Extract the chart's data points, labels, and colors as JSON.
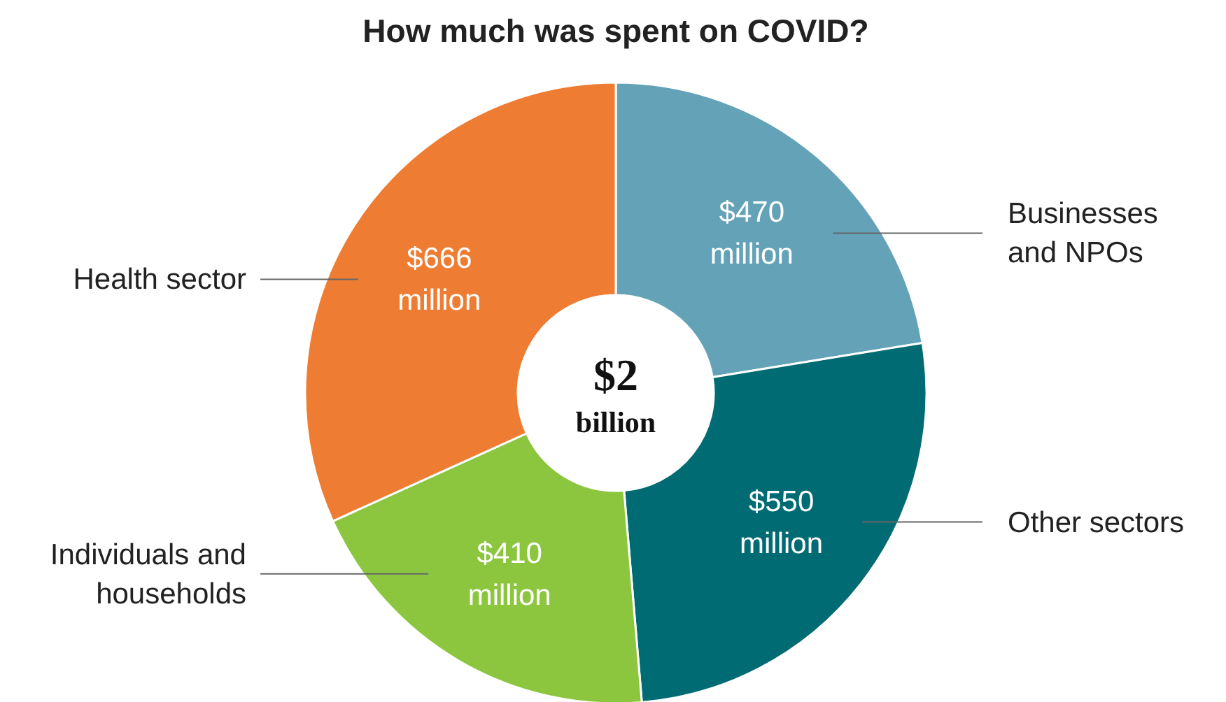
{
  "chart_data": {
    "type": "donut",
    "title": "How much was spent on COVID?",
    "categories": [
      "Businesses and NPOs",
      "Other sectors",
      "Individuals and households",
      "Health sector"
    ],
    "values": [
      470,
      550,
      410,
      666
    ],
    "colors": [
      "#64a2b8",
      "#006b73",
      "#8cc63f",
      "#ee7d33"
    ],
    "value_labels": [
      "$470 million",
      "$550 million",
      "$410 million",
      "$666 million"
    ],
    "annotations": [
      "$2 billion"
    ]
  }
}
